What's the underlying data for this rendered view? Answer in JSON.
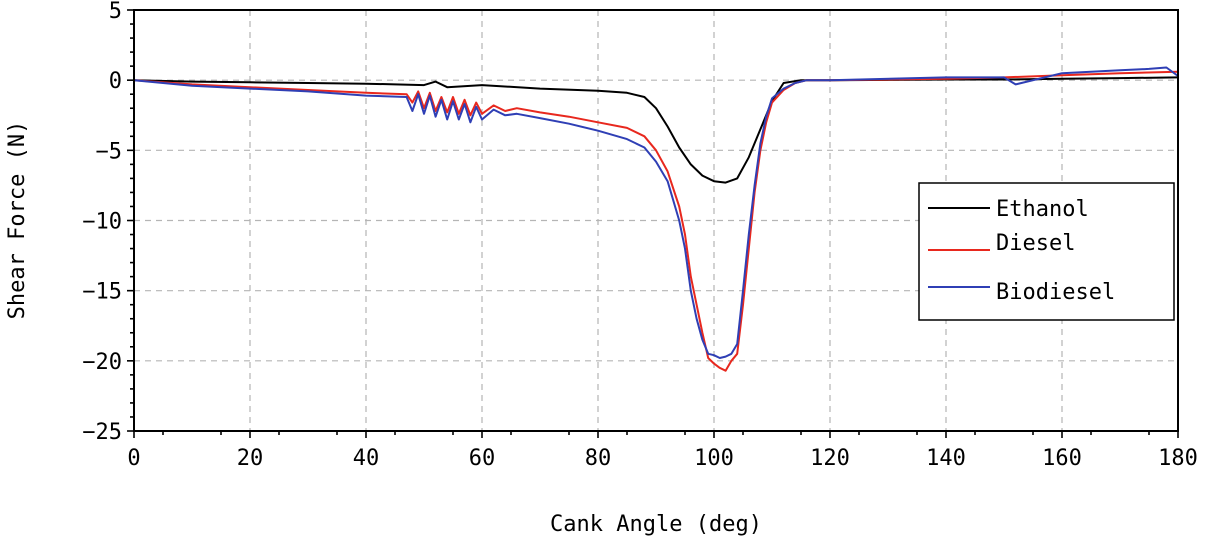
{
  "chart_data": {
    "type": "line",
    "title": "",
    "xlabel": "Cank Angle (deg)",
    "ylabel": "Shear Force (N)",
    "xlim": [
      0,
      180
    ],
    "ylim": [
      -25,
      5
    ],
    "xticks": [
      0,
      20,
      40,
      60,
      80,
      100,
      120,
      140,
      160,
      180
    ],
    "yticks": [
      5,
      0,
      -5,
      -10,
      -15,
      -20,
      -25
    ],
    "grid": true,
    "legend_position": "right",
    "series": [
      {
        "name": "Ethanol",
        "color": "#000000",
        "x": [
          0,
          10,
          20,
          30,
          40,
          45,
          50,
          52,
          54,
          60,
          70,
          80,
          85,
          88,
          90,
          92,
          94,
          96,
          98,
          100,
          102,
          104,
          106,
          108,
          110,
          112,
          115,
          120,
          140,
          150,
          160,
          170,
          180
        ],
        "y": [
          0,
          -0.1,
          -0.15,
          -0.2,
          -0.25,
          -0.3,
          -0.35,
          -0.1,
          -0.5,
          -0.35,
          -0.6,
          -0.75,
          -0.9,
          -1.2,
          -2,
          -3.3,
          -4.8,
          -6,
          -6.8,
          -7.2,
          -7.3,
          -7,
          -5.5,
          -3.5,
          -1.5,
          -0.2,
          0,
          0,
          0.05,
          0.05,
          0.1,
          0.15,
          0.2
        ]
      },
      {
        "name": "Diesel",
        "color": "#e8281e",
        "x": [
          0,
          10,
          20,
          30,
          40,
          47,
          48,
          49,
          50,
          51,
          52,
          53,
          54,
          55,
          56,
          57,
          58,
          59,
          60,
          62,
          64,
          66,
          70,
          75,
          80,
          85,
          88,
          90,
          92,
          94,
          95,
          96,
          97,
          98,
          99,
          100,
          101,
          102,
          103,
          104,
          105,
          106,
          107,
          108,
          109,
          110,
          112,
          114,
          116,
          120,
          140,
          150,
          160,
          170,
          180
        ],
        "y": [
          0,
          -0.3,
          -0.5,
          -0.7,
          -0.9,
          -1.0,
          -1.6,
          -0.8,
          -2.0,
          -0.9,
          -2.2,
          -1.2,
          -2.3,
          -1.2,
          -2.4,
          -1.4,
          -2.5,
          -1.6,
          -2.4,
          -1.8,
          -2.2,
          -2.0,
          -2.3,
          -2.6,
          -3.0,
          -3.4,
          -4.0,
          -5.0,
          -6.5,
          -9.0,
          -11.0,
          -14.0,
          -16.0,
          -18.0,
          -19.8,
          -20.2,
          -20.5,
          -20.7,
          -20.0,
          -19.5,
          -16.0,
          -12.0,
          -8.0,
          -5.0,
          -3.0,
          -1.6,
          -0.7,
          -0.2,
          0,
          0,
          0.1,
          0.2,
          0.35,
          0.5,
          0.6
        ]
      },
      {
        "name": "Biodiesel",
        "color": "#2f3fb5",
        "x": [
          0,
          10,
          20,
          30,
          40,
          47,
          48,
          49,
          50,
          51,
          52,
          53,
          54,
          55,
          56,
          57,
          58,
          59,
          60,
          62,
          64,
          66,
          70,
          75,
          80,
          85,
          88,
          90,
          92,
          94,
          95,
          96,
          97,
          98,
          99,
          100,
          101,
          102,
          103,
          104,
          105,
          106,
          107,
          108,
          109,
          110,
          112,
          114,
          116,
          120,
          140,
          150,
          152,
          160,
          165,
          170,
          175,
          178,
          180
        ],
        "y": [
          0,
          -0.4,
          -0.6,
          -0.8,
          -1.1,
          -1.2,
          -2.2,
          -1.0,
          -2.4,
          -1.1,
          -2.6,
          -1.4,
          -2.8,
          -1.5,
          -2.8,
          -1.7,
          -3.0,
          -1.9,
          -2.8,
          -2.1,
          -2.5,
          -2.4,
          -2.7,
          -3.1,
          -3.6,
          -4.2,
          -4.8,
          -5.8,
          -7.2,
          -10.0,
          -12.0,
          -15.0,
          -17.0,
          -18.5,
          -19.5,
          -19.6,
          -19.8,
          -19.7,
          -19.5,
          -18.8,
          -15.0,
          -11.0,
          -7.5,
          -4.5,
          -2.6,
          -1.3,
          -0.6,
          -0.2,
          0,
          0,
          0.2,
          0.2,
          -0.3,
          0.5,
          0.6,
          0.7,
          0.8,
          0.9,
          0.3
        ]
      }
    ]
  }
}
